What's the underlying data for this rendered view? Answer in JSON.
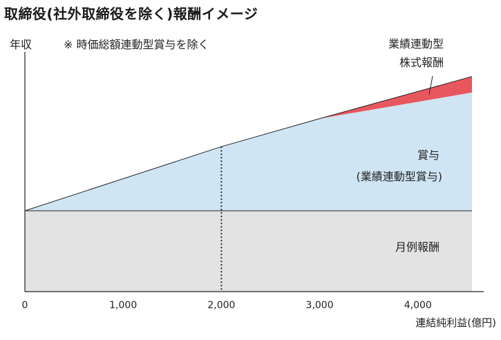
{
  "title": "取締役(社外取締役を除く)報酬イメージ",
  "ylabel": "年収",
  "note": "※ 時価総額連動型賞与を除く",
  "xlabel": "連結純利益(億円)",
  "colors": {
    "fixed": "#e3e3e3",
    "bonus": "#cfe5f4",
    "stock": "#e9575e",
    "line": "#222222"
  },
  "chart_data": {
    "type": "area",
    "title": "取締役(社外取締役を除く)報酬イメージ",
    "xlabel": "連結純利益(億円)",
    "ylabel": "年収",
    "x_ticks": [
      "0",
      "1,000",
      "2,000",
      "3,000",
      "4,000"
    ],
    "x_tick_values": [
      0,
      1000,
      2000,
      3000,
      4000
    ],
    "xlim": [
      0,
      4550
    ],
    "y_scale": "no numeric scale (schematic)",
    "x": [
      0,
      2000,
      3000,
      4550
    ],
    "series": [
      {
        "name": "月例報酬",
        "values": [
          0,
          0,
          0,
          0
        ]
      },
      {
        "name": "賞与(業績連動型賞与)",
        "values": [
          0,
          1.6,
          2.3,
          2.95
        ]
      },
      {
        "name": "業績連動型株式報酬",
        "values": [
          0,
          0,
          0,
          0.4
        ]
      }
    ],
    "labels": {
      "fixed": "月例報酬",
      "bonus_line1": "賞与",
      "bonus_line2": "(業績連動型賞与)",
      "stock_line1": "業績連動型",
      "stock_line2": "株式報酬"
    },
    "reference_line_x": 2000
  }
}
